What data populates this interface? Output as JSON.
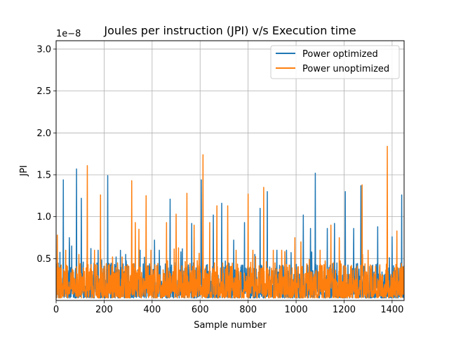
{
  "chart_data": {
    "type": "line",
    "title": "Joules per instruction (JPI) v/s Execution time",
    "xlabel": "Sample number",
    "ylabel": "JPI",
    "y_offset_label": "1e−8",
    "xlim": [
      0,
      1450
    ],
    "ylim": [
      0,
      3.1
    ],
    "y_multiplier": 1e-08,
    "xticks": [
      0,
      200,
      400,
      600,
      800,
      1000,
      1200,
      1400
    ],
    "xtick_labels": [
      "0",
      "200",
      "400",
      "600",
      "800",
      "1000",
      "1200",
      "1400"
    ],
    "yticks": [
      0.5,
      1.0,
      1.5,
      2.0,
      2.5,
      3.0
    ],
    "ytick_labels": [
      "0.5",
      "1.0",
      "1.5",
      "2.0",
      "2.5",
      "3.0"
    ],
    "grid": true,
    "legend_position": "upper right",
    "series": [
      {
        "name": "Power optimized",
        "color": "#1f77b4",
        "n_samples": 1450,
        "peaks": [
          {
            "x": 30,
            "y": 1.44
          },
          {
            "x": 55,
            "y": 0.75
          },
          {
            "x": 65,
            "y": 0.65
          },
          {
            "x": 85,
            "y": 1.57
          },
          {
            "x": 105,
            "y": 1.22
          },
          {
            "x": 145,
            "y": 0.62
          },
          {
            "x": 175,
            "y": 0.6
          },
          {
            "x": 215,
            "y": 1.49
          },
          {
            "x": 250,
            "y": 0.52
          },
          {
            "x": 290,
            "y": 0.55
          },
          {
            "x": 350,
            "y": 0.6
          },
          {
            "x": 410,
            "y": 0.72
          },
          {
            "x": 430,
            "y": 0.6
          },
          {
            "x": 475,
            "y": 1.21
          },
          {
            "x": 520,
            "y": 0.58
          },
          {
            "x": 565,
            "y": 0.92
          },
          {
            "x": 605,
            "y": 1.44
          },
          {
            "x": 655,
            "y": 1.02
          },
          {
            "x": 690,
            "y": 1.16
          },
          {
            "x": 740,
            "y": 0.72
          },
          {
            "x": 785,
            "y": 0.93
          },
          {
            "x": 850,
            "y": 1.1
          },
          {
            "x": 880,
            "y": 1.3
          },
          {
            "x": 920,
            "y": 0.6
          },
          {
            "x": 960,
            "y": 0.6
          },
          {
            "x": 1030,
            "y": 1.02
          },
          {
            "x": 1060,
            "y": 0.86
          },
          {
            "x": 1080,
            "y": 1.52
          },
          {
            "x": 1130,
            "y": 0.86
          },
          {
            "x": 1160,
            "y": 0.92
          },
          {
            "x": 1205,
            "y": 1.3
          },
          {
            "x": 1240,
            "y": 0.86
          },
          {
            "x": 1270,
            "y": 1.37
          },
          {
            "x": 1340,
            "y": 0.88
          },
          {
            "x": 1400,
            "y": 0.76
          },
          {
            "x": 1440,
            "y": 1.26
          }
        ]
      },
      {
        "name": "Power unoptimized",
        "color": "#ff7f0e",
        "n_samples": 1450,
        "peaks": [
          {
            "x": 5,
            "y": 0.78
          },
          {
            "x": 40,
            "y": 0.6
          },
          {
            "x": 95,
            "y": 0.55
          },
          {
            "x": 130,
            "y": 1.61
          },
          {
            "x": 160,
            "y": 0.6
          },
          {
            "x": 185,
            "y": 1.26
          },
          {
            "x": 235,
            "y": 0.52
          },
          {
            "x": 275,
            "y": 0.52
          },
          {
            "x": 315,
            "y": 1.43
          },
          {
            "x": 330,
            "y": 0.93
          },
          {
            "x": 345,
            "y": 0.85
          },
          {
            "x": 375,
            "y": 1.25
          },
          {
            "x": 395,
            "y": 0.6
          },
          {
            "x": 460,
            "y": 0.93
          },
          {
            "x": 500,
            "y": 1.03
          },
          {
            "x": 545,
            "y": 1.28
          },
          {
            "x": 575,
            "y": 0.9
          },
          {
            "x": 612,
            "y": 1.74
          },
          {
            "x": 640,
            "y": 0.93
          },
          {
            "x": 670,
            "y": 1.13
          },
          {
            "x": 715,
            "y": 1.13
          },
          {
            "x": 750,
            "y": 0.6
          },
          {
            "x": 800,
            "y": 1.27
          },
          {
            "x": 820,
            "y": 0.6
          },
          {
            "x": 865,
            "y": 1.35
          },
          {
            "x": 905,
            "y": 0.6
          },
          {
            "x": 940,
            "y": 0.6
          },
          {
            "x": 995,
            "y": 0.75
          },
          {
            "x": 1020,
            "y": 0.7
          },
          {
            "x": 1100,
            "y": 0.6
          },
          {
            "x": 1145,
            "y": 0.9
          },
          {
            "x": 1180,
            "y": 0.75
          },
          {
            "x": 1275,
            "y": 1.38
          },
          {
            "x": 1300,
            "y": 0.6
          },
          {
            "x": 1380,
            "y": 1.84
          },
          {
            "x": 1420,
            "y": 0.83
          }
        ]
      }
    ]
  }
}
